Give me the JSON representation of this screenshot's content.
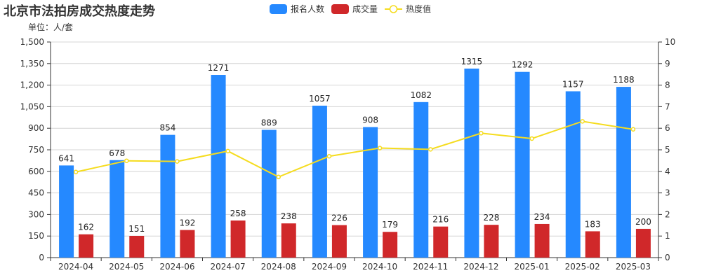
{
  "title": "北京市法拍房成交热度走势",
  "unit_label": "单位：人/套",
  "legend": [
    {
      "name": "报名人数",
      "color": "#2589ff",
      "type": "bar"
    },
    {
      "name": "成交量",
      "color": "#d0282a",
      "type": "bar"
    },
    {
      "name": "热度值",
      "color": "#f5dc1e",
      "type": "line"
    }
  ],
  "chart_data": {
    "type": "bar",
    "title": "北京市法拍房成交热度走势",
    "subtitle": "单位：人/套",
    "xlabel": "",
    "ylabel": "人/套",
    "categories": [
      "2024-04",
      "2024-05",
      "2024-06",
      "2024-07",
      "2024-08",
      "2024-09",
      "2024-10",
      "2024-11",
      "2024-12",
      "2025-01",
      "2025-02",
      "2025-03"
    ],
    "series": [
      {
        "name": "报名人数",
        "type": "bar",
        "axis": "left",
        "color": "#2589ff",
        "values": [
          641,
          678,
          854,
          1271,
          889,
          1057,
          908,
          1082,
          1315,
          1292,
          1157,
          1188
        ]
      },
      {
        "name": "成交量",
        "type": "bar",
        "axis": "left",
        "color": "#d0282a",
        "values": [
          162,
          151,
          192,
          258,
          238,
          226,
          179,
          216,
          228,
          234,
          183,
          200
        ]
      },
      {
        "name": "热度值",
        "type": "line",
        "axis": "right",
        "color": "#f5dc1e",
        "values": [
          3.97,
          4.49,
          4.46,
          4.94,
          3.74,
          4.7,
          5.08,
          5.02,
          5.77,
          5.52,
          6.32,
          5.95
        ]
      }
    ],
    "ylim": [
      0,
      1500
    ],
    "yticks": [
      "0",
      "150",
      "300",
      "450",
      "600",
      "750",
      "900",
      "1,050",
      "1,200",
      "1,350",
      "1,500"
    ],
    "y2lim": [
      0,
      10
    ],
    "y2ticks": [
      "0",
      "1",
      "2",
      "3",
      "4",
      "5",
      "6",
      "7",
      "8",
      "9",
      "10"
    ],
    "grid": true,
    "legend_position": "top-center"
  }
}
